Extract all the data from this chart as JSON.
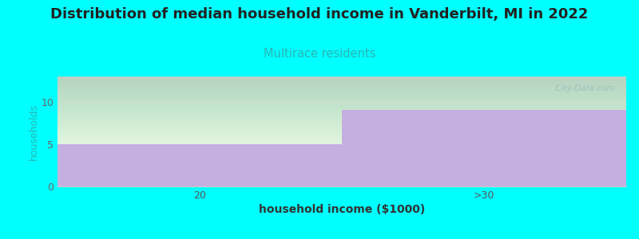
{
  "title": "Distribution of median household income in Vanderbilt, MI in 2022",
  "subtitle": "Multirace residents",
  "xlabel": "household income ($1000)",
  "ylabel": "households",
  "categories": [
    "20",
    ">30"
  ],
  "values": [
    5,
    9
  ],
  "bar_color": "#c5aee0",
  "ylim": [
    0,
    13
  ],
  "yticks": [
    0,
    5,
    10
  ],
  "background_color": "#00ffff",
  "title_fontsize": 13,
  "subtitle_fontsize": 10.5,
  "subtitle_color": "#2ab5b5",
  "xlabel_fontsize": 10,
  "ylabel_fontsize": 9,
  "tick_fontsize": 9,
  "watermark": "  City-Data.com"
}
